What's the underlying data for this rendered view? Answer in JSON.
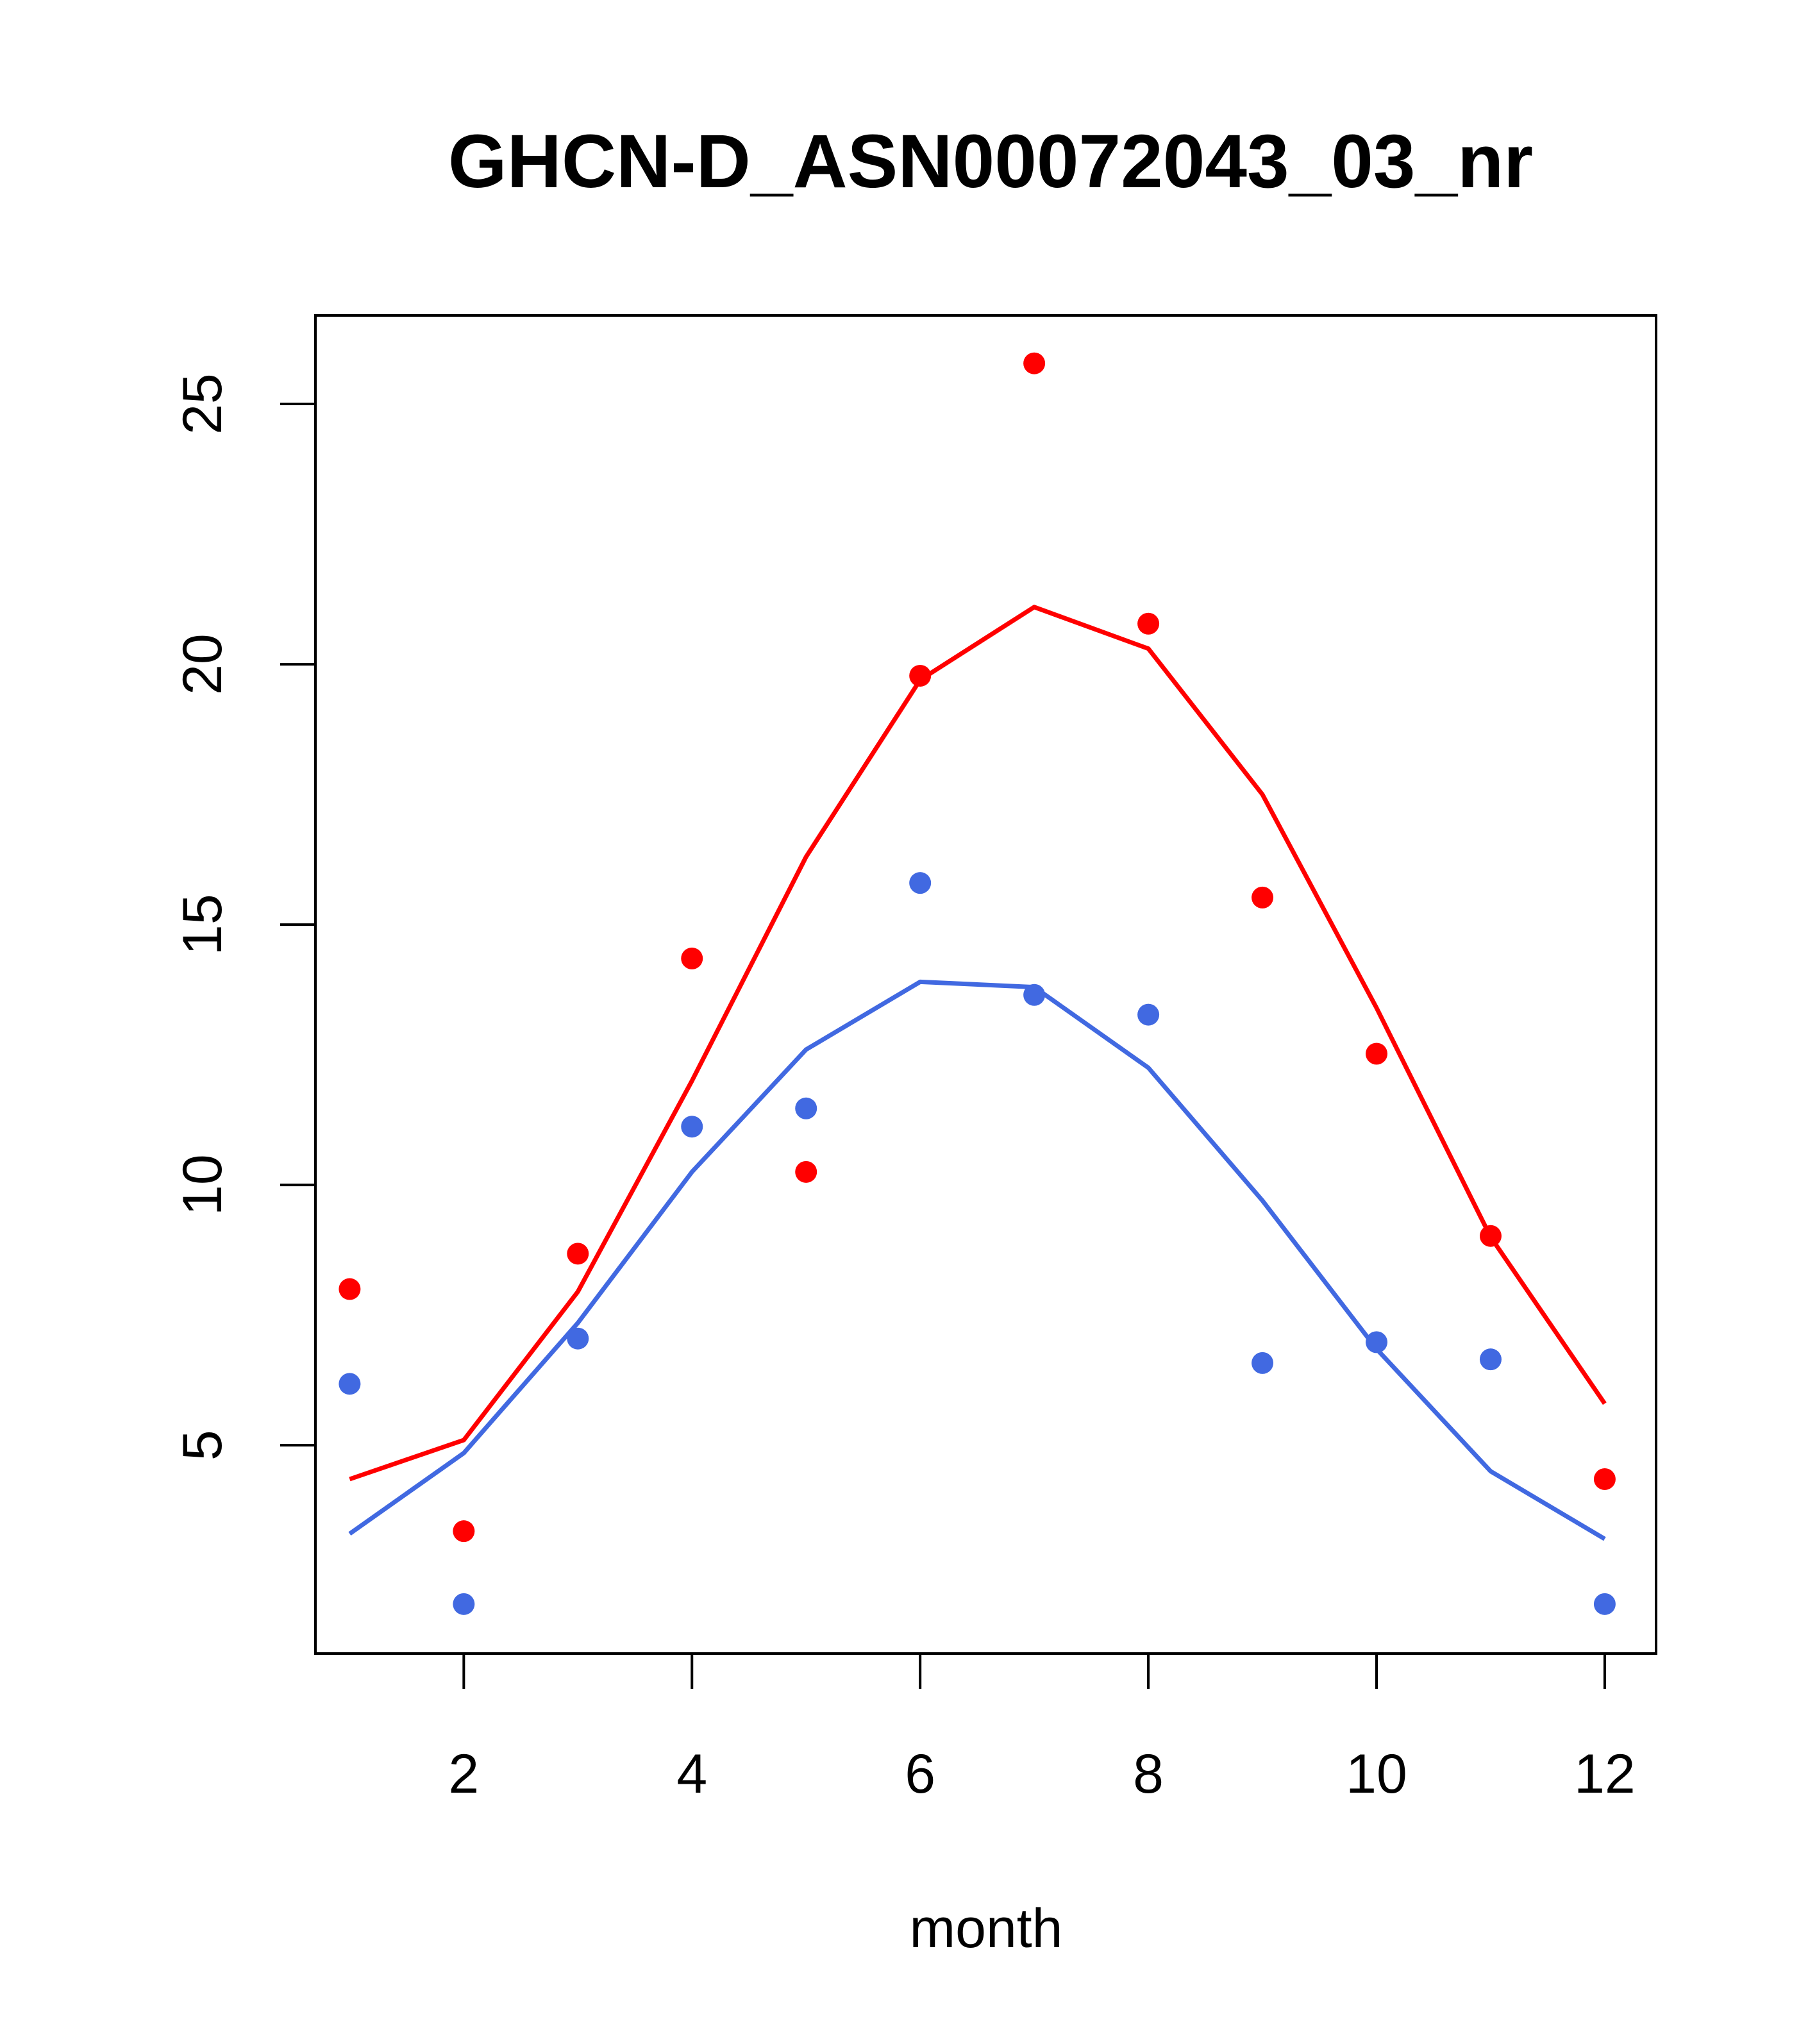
{
  "chart_data": {
    "type": "line",
    "title": "GHCN-D_ASN00072043_03_nr",
    "xlabel": "month",
    "ylabel": "",
    "xlim": [
      0.7,
      12.45
    ],
    "ylim": [
      1.0,
      26.7
    ],
    "x_ticks": [
      2,
      4,
      6,
      8,
      10,
      12
    ],
    "y_ticks": [
      5,
      10,
      15,
      20,
      25
    ],
    "grid": false,
    "legend": "none",
    "x": [
      1,
      2,
      3,
      4,
      5,
      6,
      7,
      8,
      9,
      10,
      11,
      12
    ],
    "series": [
      {
        "color": "#ff0000",
        "points": [
          8.0,
          3.35,
          8.68,
          14.35,
          10.25,
          19.78,
          25.78,
          20.78,
          15.52,
          12.52,
          9.02,
          4.35
        ],
        "line": [
          4.35,
          5.1,
          7.95,
          12.0,
          16.3,
          19.7,
          21.1,
          20.3,
          17.5,
          13.4,
          9.0,
          5.8
        ]
      },
      {
        "color": "#4169e1",
        "points": [
          6.18,
          1.95,
          7.05,
          11.12,
          11.47,
          15.8,
          13.65,
          13.27,
          6.58,
          6.98,
          6.65,
          1.95
        ],
        "line": [
          3.3,
          4.85,
          7.35,
          10.25,
          12.6,
          13.9,
          13.8,
          12.25,
          9.7,
          6.85,
          4.5,
          3.2
        ]
      }
    ]
  }
}
